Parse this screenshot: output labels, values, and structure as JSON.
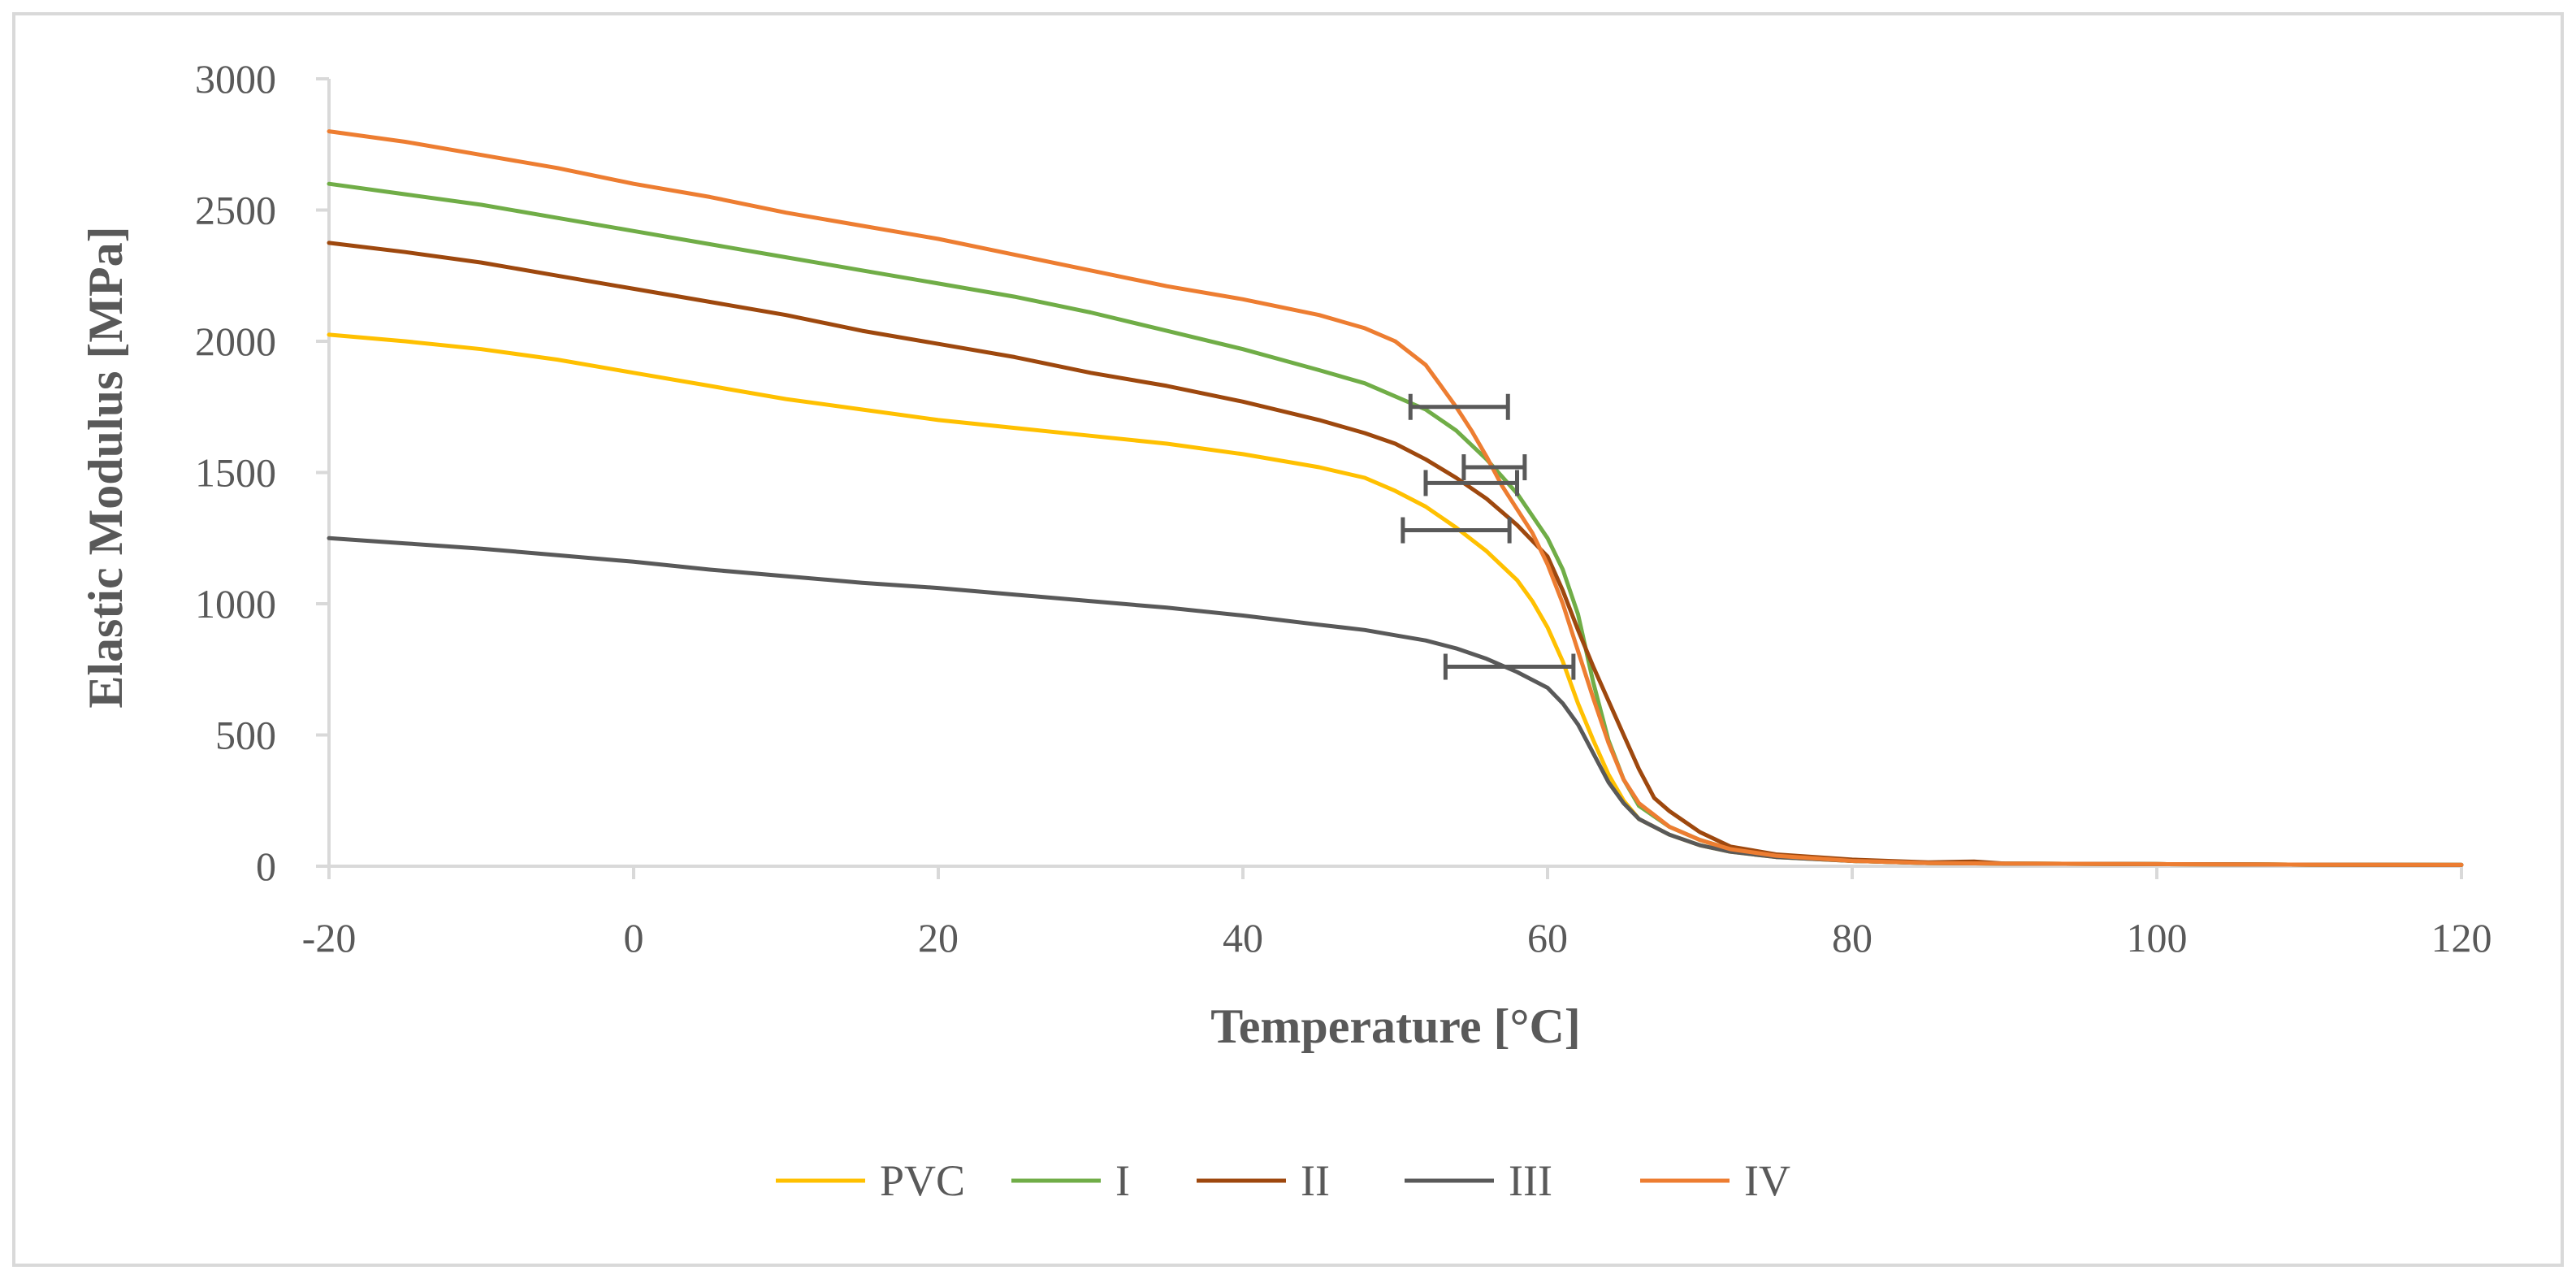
{
  "chart_data": {
    "type": "line",
    "title": "",
    "xlabel": "Temperature [°C]",
    "ylabel": "Elastic Modulus [MPa]",
    "xlim": [
      -20,
      120
    ],
    "ylim": [
      0,
      3000
    ],
    "xticks": [
      -20,
      0,
      20,
      40,
      60,
      80,
      100,
      120
    ],
    "yticks": [
      0,
      500,
      1000,
      1500,
      2000,
      2500,
      3000
    ],
    "grid": false,
    "legend_position": "bottom",
    "series": [
      {
        "name": "PVC",
        "color": "#FFC000",
        "points": [
          [
            -20,
            2025
          ],
          [
            -15,
            2000
          ],
          [
            -10,
            1970
          ],
          [
            -5,
            1930
          ],
          [
            0,
            1880
          ],
          [
            5,
            1830
          ],
          [
            10,
            1780
          ],
          [
            15,
            1740
          ],
          [
            20,
            1700
          ],
          [
            25,
            1670
          ],
          [
            30,
            1640
          ],
          [
            35,
            1610
          ],
          [
            40,
            1570
          ],
          [
            45,
            1520
          ],
          [
            48,
            1480
          ],
          [
            50,
            1430
          ],
          [
            52,
            1370
          ],
          [
            54,
            1290
          ],
          [
            56,
            1200
          ],
          [
            58,
            1090
          ],
          [
            59,
            1010
          ],
          [
            60,
            910
          ],
          [
            61,
            780
          ],
          [
            62,
            620
          ],
          [
            63,
            480
          ],
          [
            64,
            350
          ],
          [
            65,
            250
          ],
          [
            66,
            180
          ],
          [
            68,
            120
          ],
          [
            70,
            80
          ],
          [
            72,
            55
          ],
          [
            75,
            35
          ],
          [
            80,
            20
          ],
          [
            85,
            12
          ],
          [
            90,
            10
          ],
          [
            100,
            8
          ],
          [
            110,
            6
          ],
          [
            120,
            5
          ]
        ]
      },
      {
        "name": "I",
        "color": "#70AD47",
        "points": [
          [
            -20,
            2600
          ],
          [
            -15,
            2560
          ],
          [
            -10,
            2520
          ],
          [
            -5,
            2470
          ],
          [
            0,
            2420
          ],
          [
            5,
            2370
          ],
          [
            10,
            2320
          ],
          [
            15,
            2270
          ],
          [
            20,
            2220
          ],
          [
            25,
            2170
          ],
          [
            30,
            2110
          ],
          [
            35,
            2040
          ],
          [
            40,
            1970
          ],
          [
            45,
            1890
          ],
          [
            48,
            1840
          ],
          [
            50,
            1790
          ],
          [
            52,
            1740
          ],
          [
            54,
            1660
          ],
          [
            56,
            1550
          ],
          [
            58,
            1420
          ],
          [
            60,
            1250
          ],
          [
            61,
            1130
          ],
          [
            62,
            960
          ],
          [
            63,
            700
          ],
          [
            64,
            480
          ],
          [
            65,
            330
          ],
          [
            66,
            230
          ],
          [
            68,
            150
          ],
          [
            70,
            100
          ],
          [
            72,
            65
          ],
          [
            75,
            40
          ],
          [
            80,
            20
          ],
          [
            85,
            12
          ],
          [
            90,
            10
          ],
          [
            100,
            8
          ],
          [
            110,
            6
          ],
          [
            120,
            5
          ]
        ]
      },
      {
        "name": "II",
        "color": "#9E480E",
        "points": [
          [
            -20,
            2375
          ],
          [
            -15,
            2340
          ],
          [
            -10,
            2300
          ],
          [
            -5,
            2250
          ],
          [
            0,
            2200
          ],
          [
            5,
            2150
          ],
          [
            10,
            2100
          ],
          [
            15,
            2040
          ],
          [
            20,
            1990
          ],
          [
            25,
            1940
          ],
          [
            30,
            1880
          ],
          [
            35,
            1830
          ],
          [
            40,
            1770
          ],
          [
            45,
            1700
          ],
          [
            48,
            1650
          ],
          [
            50,
            1610
          ],
          [
            52,
            1550
          ],
          [
            54,
            1480
          ],
          [
            56,
            1400
          ],
          [
            58,
            1300
          ],
          [
            60,
            1180
          ],
          [
            61,
            1050
          ],
          [
            62,
            900
          ],
          [
            63,
            760
          ],
          [
            64,
            630
          ],
          [
            65,
            500
          ],
          [
            66,
            370
          ],
          [
            67,
            260
          ],
          [
            68,
            210
          ],
          [
            70,
            130
          ],
          [
            72,
            75
          ],
          [
            75,
            45
          ],
          [
            80,
            25
          ],
          [
            85,
            15
          ],
          [
            88,
            18
          ],
          [
            90,
            10
          ],
          [
            100,
            8
          ],
          [
            110,
            6
          ],
          [
            120,
            5
          ]
        ]
      },
      {
        "name": "III",
        "color": "#595959",
        "points": [
          [
            -20,
            1250
          ],
          [
            -15,
            1230
          ],
          [
            -10,
            1210
          ],
          [
            -5,
            1185
          ],
          [
            0,
            1160
          ],
          [
            5,
            1130
          ],
          [
            10,
            1105
          ],
          [
            15,
            1080
          ],
          [
            20,
            1060
          ],
          [
            25,
            1035
          ],
          [
            30,
            1010
          ],
          [
            35,
            985
          ],
          [
            40,
            955
          ],
          [
            45,
            920
          ],
          [
            48,
            900
          ],
          [
            50,
            880
          ],
          [
            52,
            860
          ],
          [
            54,
            830
          ],
          [
            56,
            790
          ],
          [
            58,
            740
          ],
          [
            60,
            680
          ],
          [
            61,
            620
          ],
          [
            62,
            540
          ],
          [
            63,
            430
          ],
          [
            64,
            320
          ],
          [
            65,
            240
          ],
          [
            66,
            180
          ],
          [
            68,
            120
          ],
          [
            70,
            80
          ],
          [
            72,
            55
          ],
          [
            75,
            35
          ],
          [
            80,
            20
          ],
          [
            85,
            12
          ],
          [
            90,
            10
          ],
          [
            100,
            8
          ],
          [
            110,
            6
          ],
          [
            120,
            5
          ]
        ]
      },
      {
        "name": "IV",
        "color": "#ED7D31",
        "points": [
          [
            -20,
            2800
          ],
          [
            -15,
            2760
          ],
          [
            -10,
            2710
          ],
          [
            -5,
            2660
          ],
          [
            0,
            2600
          ],
          [
            5,
            2550
          ],
          [
            10,
            2490
          ],
          [
            15,
            2440
          ],
          [
            20,
            2390
          ],
          [
            25,
            2330
          ],
          [
            30,
            2270
          ],
          [
            35,
            2210
          ],
          [
            40,
            2160
          ],
          [
            45,
            2100
          ],
          [
            48,
            2050
          ],
          [
            50,
            2000
          ],
          [
            52,
            1910
          ],
          [
            53,
            1830
          ],
          [
            54,
            1750
          ],
          [
            55,
            1660
          ],
          [
            56,
            1560
          ],
          [
            57,
            1450
          ],
          [
            58,
            1360
          ],
          [
            59,
            1270
          ],
          [
            60,
            1150
          ],
          [
            61,
            1000
          ],
          [
            62,
            820
          ],
          [
            63,
            640
          ],
          [
            64,
            470
          ],
          [
            65,
            330
          ],
          [
            66,
            240
          ],
          [
            68,
            150
          ],
          [
            70,
            100
          ],
          [
            72,
            65
          ],
          [
            75,
            40
          ],
          [
            80,
            20
          ],
          [
            85,
            12
          ],
          [
            90,
            10
          ],
          [
            100,
            8
          ],
          [
            110,
            6
          ],
          [
            120,
            5
          ]
        ]
      }
    ],
    "error_bars": [
      {
        "center": [
          54.2,
          1750
        ],
        "xerr": [
          51.0,
          57.4
        ],
        "color": "#595959"
      },
      {
        "center": [
          56.5,
          1520
        ],
        "xerr": [
          54.5,
          58.5
        ],
        "color": "#595959"
      },
      {
        "center": [
          55.0,
          1460
        ],
        "xerr": [
          52.0,
          58.0
        ],
        "color": "#595959"
      },
      {
        "center": [
          54.0,
          1280
        ],
        "xerr": [
          50.5,
          57.5
        ],
        "color": "#595959"
      },
      {
        "center": [
          57.5,
          760
        ],
        "xerr": [
          53.3,
          61.7
        ],
        "color": "#595959"
      }
    ]
  }
}
